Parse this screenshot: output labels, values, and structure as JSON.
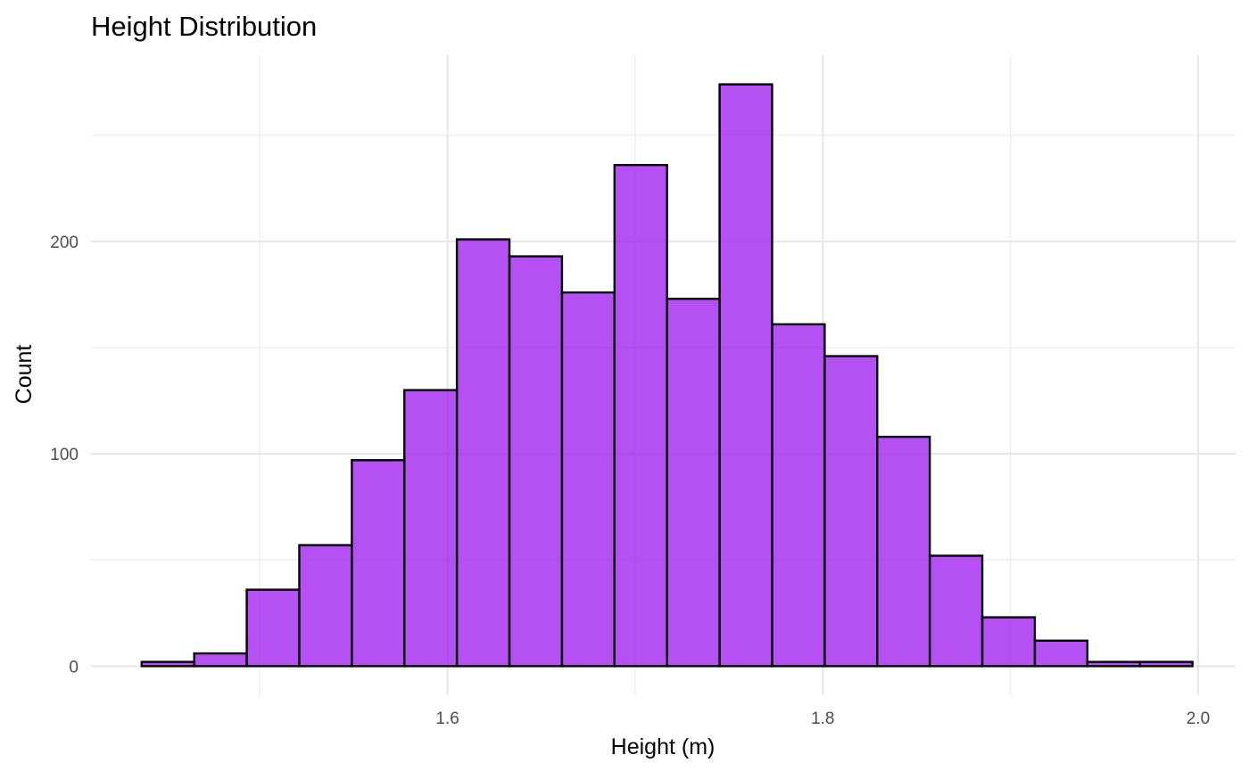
{
  "chart_data": {
    "type": "bar",
    "title": "Height Distribution",
    "xlabel": "Height (m)",
    "ylabel": "Count",
    "bin_width": 0.028,
    "bins": [
      {
        "start": 1.437,
        "end": 1.465,
        "count": 2
      },
      {
        "start": 1.465,
        "end": 1.493,
        "count": 6
      },
      {
        "start": 1.493,
        "end": 1.521,
        "count": 36
      },
      {
        "start": 1.521,
        "end": 1.549,
        "count": 57
      },
      {
        "start": 1.549,
        "end": 1.577,
        "count": 97
      },
      {
        "start": 1.577,
        "end": 1.605,
        "count": 130
      },
      {
        "start": 1.605,
        "end": 1.633,
        "count": 201
      },
      {
        "start": 1.633,
        "end": 1.661,
        "count": 193
      },
      {
        "start": 1.661,
        "end": 1.689,
        "count": 176
      },
      {
        "start": 1.689,
        "end": 1.717,
        "count": 236
      },
      {
        "start": 1.717,
        "end": 1.745,
        "count": 173
      },
      {
        "start": 1.745,
        "end": 1.773,
        "count": 274
      },
      {
        "start": 1.773,
        "end": 1.801,
        "count": 161
      },
      {
        "start": 1.801,
        "end": 1.829,
        "count": 146
      },
      {
        "start": 1.829,
        "end": 1.857,
        "count": 108
      },
      {
        "start": 1.857,
        "end": 1.885,
        "count": 52
      },
      {
        "start": 1.885,
        "end": 1.913,
        "count": 23
      },
      {
        "start": 1.913,
        "end": 1.941,
        "count": 12
      },
      {
        "start": 1.941,
        "end": 1.969,
        "count": 2
      },
      {
        "start": 1.969,
        "end": 1.997,
        "count": 2
      }
    ],
    "xlim": [
      1.41,
      2.02
    ],
    "ylim": [
      -13.7,
      287.7
    ],
    "x_ticks": [
      {
        "value": 1.6,
        "label": "1.6"
      },
      {
        "value": 1.8,
        "label": "1.8"
      },
      {
        "value": 2.0,
        "label": "2.0"
      }
    ],
    "x_minor_ticks": [
      1.5,
      1.7,
      1.9
    ],
    "y_ticks": [
      {
        "value": 0,
        "label": "0"
      },
      {
        "value": 100,
        "label": "100"
      },
      {
        "value": 200,
        "label": "200"
      }
    ],
    "y_minor_ticks": [
      50,
      150,
      250
    ],
    "grid": true,
    "legend": "none",
    "colors": {
      "fill": "#a020f0",
      "fill_opacity": 0.78,
      "outline": "#000000",
      "grid": "#ebebeb",
      "tick_text": "#4d4d4d"
    }
  }
}
